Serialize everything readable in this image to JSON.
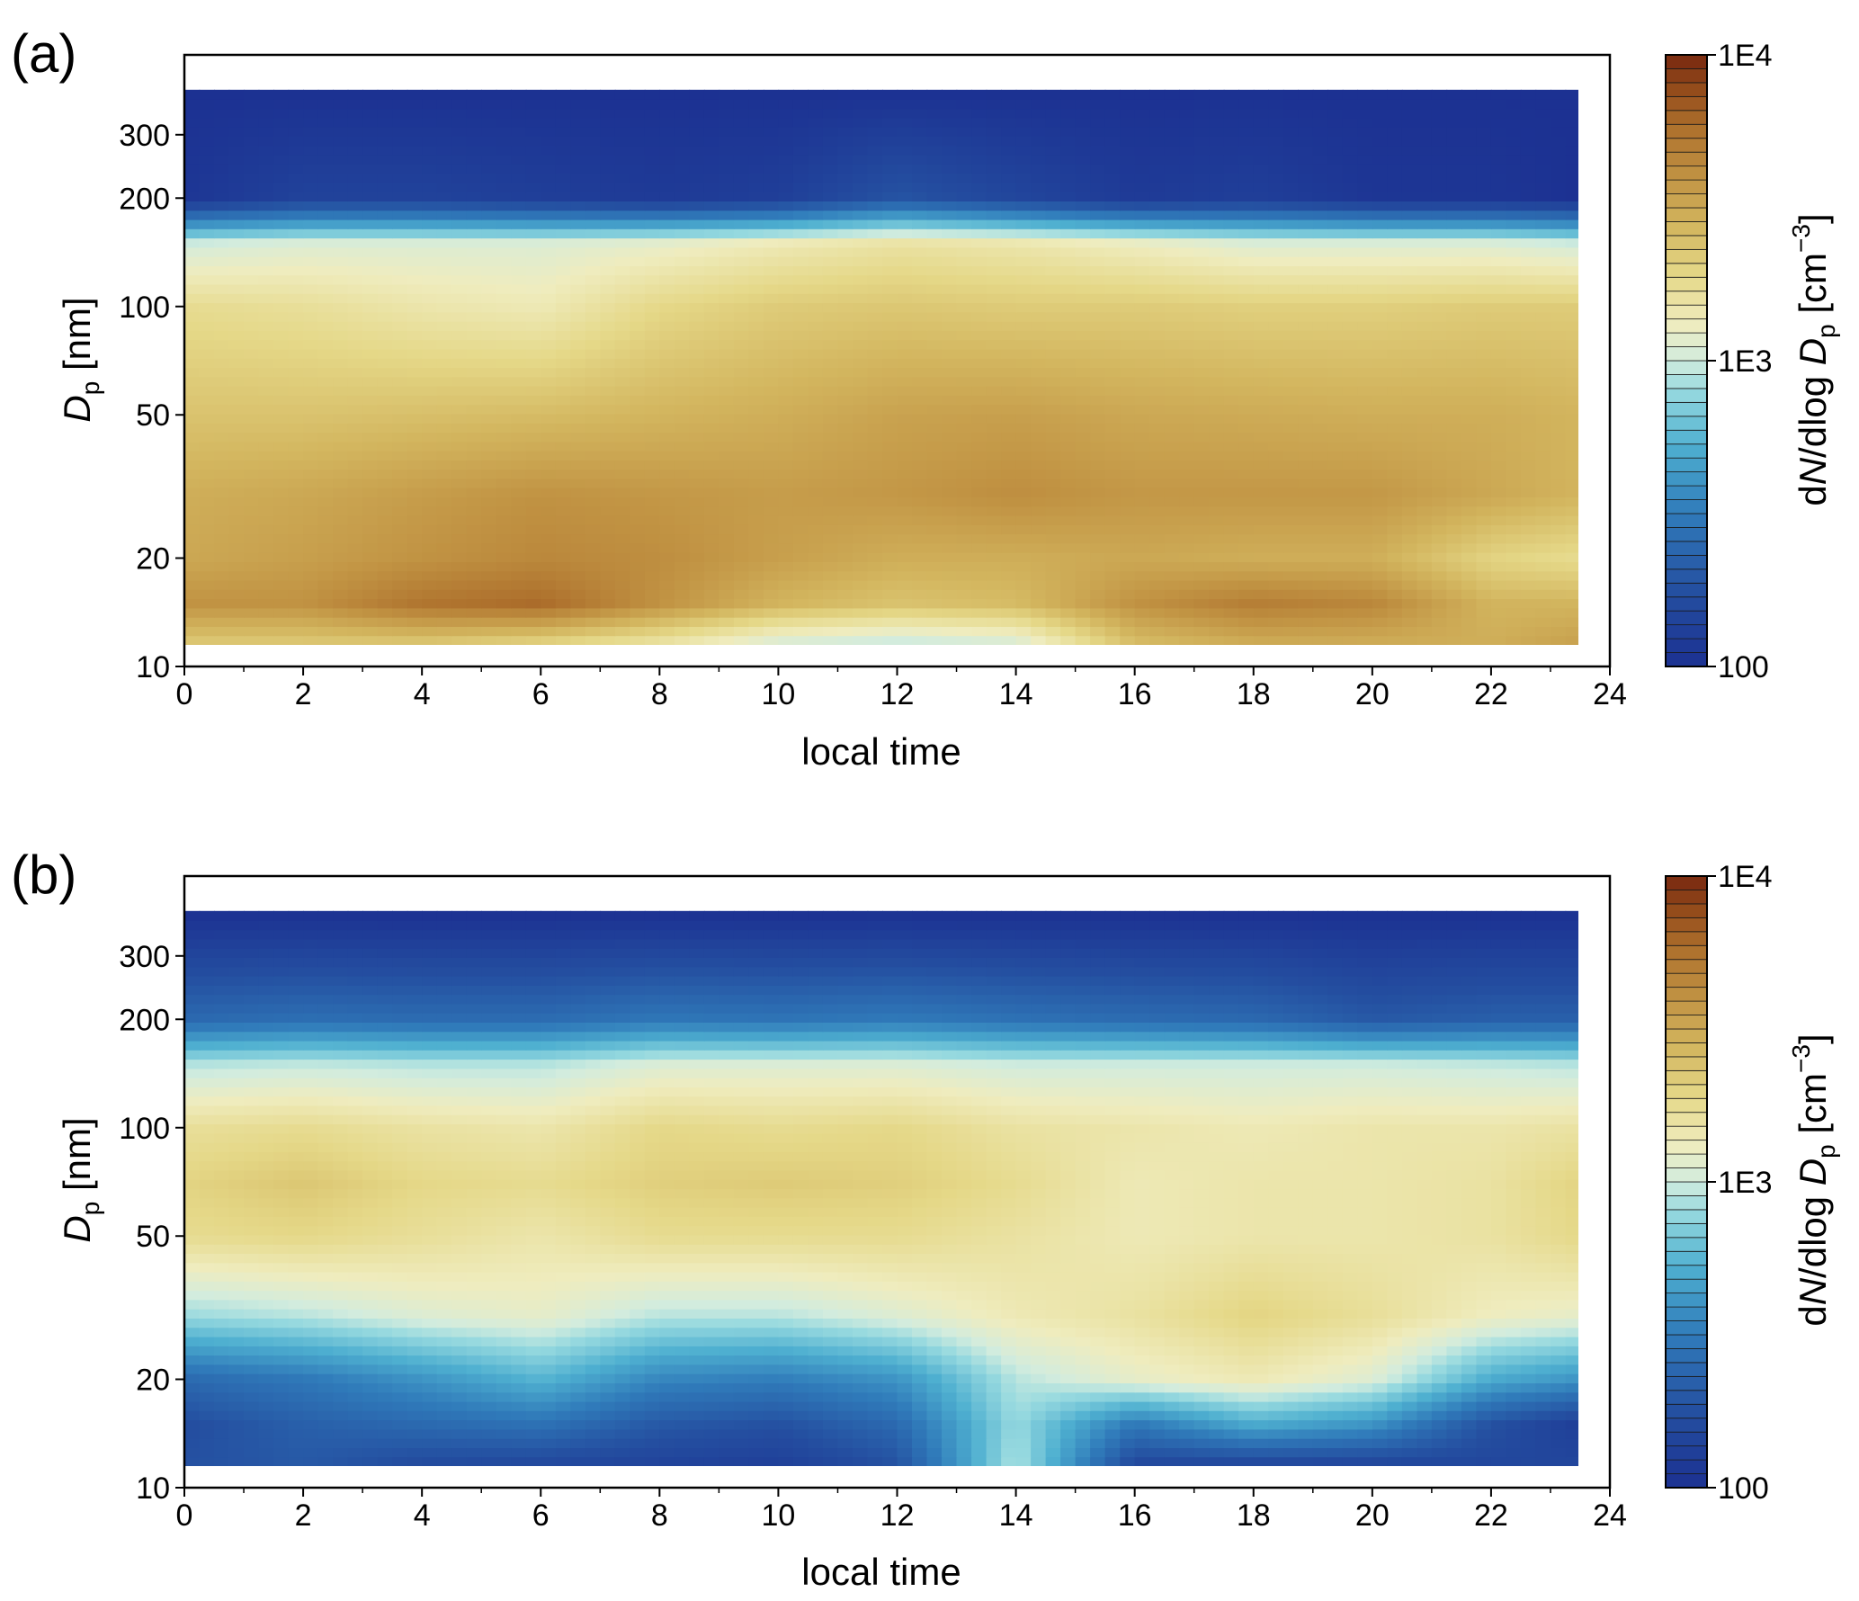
{
  "chart_data": [
    {
      "type": "heatmap",
      "panel_label": "(a)",
      "xlabel": "local time",
      "ylabel": "D",
      "ylabel_sub": "p",
      "ylabel_unit": " [nm]",
      "x_ticks": [
        "0",
        "2",
        "4",
        "6",
        "8",
        "10",
        "12",
        "14",
        "16",
        "18",
        "20",
        "22",
        "24"
      ],
      "xlim": [
        0,
        24
      ],
      "y_ticks": [
        {
          "value": 10,
          "label": "10"
        },
        {
          "value": 20,
          "label": "20"
        },
        {
          "value": 50,
          "label": "50"
        },
        {
          "value": 100,
          "label": "100"
        },
        {
          "value": 200,
          "label": "200"
        },
        {
          "value": 300,
          "label": "300"
        }
      ],
      "ylim": [
        10,
        500
      ],
      "y_scale": "log",
      "data_extent": {
        "x": [
          0,
          23.5
        ],
        "y": [
          11.5,
          400
        ]
      },
      "colorbar": {
        "label_pre": "d",
        "label_N": "N",
        "label_mid": "/dlog ",
        "label_D": "D",
        "label_sub": "p",
        "label_unit": " [cm",
        "label_sup": "−3",
        "label_close": "]",
        "ticks": [
          {
            "value": 100,
            "label": "100"
          },
          {
            "value": 1000,
            "label": "1E3"
          },
          {
            "value": 10000,
            "label": "1E4"
          }
        ],
        "scale": "log",
        "range": [
          100,
          10000
        ]
      },
      "x": [
        0,
        2,
        4,
        6,
        8,
        10,
        12,
        14,
        16,
        18,
        20,
        22,
        23.5
      ],
      "y": [
        11.5,
        15,
        20,
        30,
        50,
        100,
        150,
        200,
        400
      ],
      "z": [
        [
          2200,
          2200,
          2200,
          1900,
          1500,
          1000,
          900,
          1000,
          2500,
          3000,
          3000,
          3000,
          3500
        ],
        [
          4000,
          4000,
          5500,
          6000,
          4000,
          2800,
          2400,
          2600,
          4000,
          5000,
          4500,
          2800,
          2800
        ],
        [
          3200,
          3500,
          4000,
          4500,
          4200,
          3500,
          3000,
          3000,
          3200,
          3000,
          3000,
          2000,
          1800
        ],
        [
          3000,
          3200,
          3600,
          4000,
          3800,
          3600,
          3800,
          4200,
          3800,
          3800,
          3800,
          3200,
          2800
        ],
        [
          2400,
          2400,
          2500,
          2600,
          2800,
          3000,
          3400,
          3500,
          3200,
          3100,
          3000,
          3000,
          2800
        ],
        [
          1800,
          1700,
          1500,
          1400,
          1900,
          2200,
          2300,
          2200,
          2200,
          2100,
          2100,
          2200,
          2200
        ],
        [
          1000,
          1100,
          1100,
          1100,
          1200,
          1400,
          1600,
          1500,
          1300,
          1100,
          1100,
          1100,
          1000
        ],
        [
          110,
          140,
          140,
          130,
          120,
          130,
          190,
          150,
          120,
          130,
          110,
          110,
          100
        ],
        [
          100,
          100,
          100,
          100,
          100,
          100,
          100,
          100,
          100,
          100,
          100,
          100,
          100
        ]
      ]
    },
    {
      "type": "heatmap",
      "panel_label": "(b)",
      "xlabel": "local time",
      "ylabel": "D",
      "ylabel_sub": "p",
      "ylabel_unit": " [nm]",
      "x_ticks": [
        "0",
        "2",
        "4",
        "6",
        "8",
        "10",
        "12",
        "14",
        "16",
        "18",
        "20",
        "22",
        "24"
      ],
      "xlim": [
        0,
        24
      ],
      "y_ticks": [
        {
          "value": 10,
          "label": "10"
        },
        {
          "value": 20,
          "label": "20"
        },
        {
          "value": 50,
          "label": "50"
        },
        {
          "value": 100,
          "label": "100"
        },
        {
          "value": 200,
          "label": "200"
        },
        {
          "value": 300,
          "label": "300"
        }
      ],
      "ylim": [
        10,
        500
      ],
      "y_scale": "log",
      "data_extent": {
        "x": [
          0,
          23.5
        ],
        "y": [
          11.5,
          400
        ]
      },
      "colorbar": {
        "label_pre": "d",
        "label_N": "N",
        "label_mid": "/dlog ",
        "label_D": "D",
        "label_sub": "p",
        "label_unit": " [cm",
        "label_sup": "−3",
        "label_close": "]",
        "ticks": [
          {
            "value": 100,
            "label": "100"
          },
          {
            "value": 1000,
            "label": "1E3"
          },
          {
            "value": 10000,
            "label": "1E4"
          }
        ],
        "scale": "log",
        "range": [
          100,
          10000
        ]
      },
      "x": [
        0,
        2,
        4,
        6,
        8,
        10,
        12,
        14,
        16,
        18,
        20,
        22,
        23.5
      ],
      "y": [
        11.5,
        15,
        20,
        30,
        50,
        70,
        100,
        150,
        200,
        400
      ],
      "z": [
        [
          180,
          200,
          160,
          150,
          140,
          130,
          180,
          900,
          150,
          140,
          140,
          150,
          150
        ],
        [
          170,
          220,
          250,
          280,
          200,
          180,
          250,
          800,
          300,
          500,
          400,
          180,
          130
        ],
        [
          250,
          300,
          400,
          550,
          350,
          320,
          400,
          900,
          1200,
          1400,
          1100,
          500,
          400
        ],
        [
          800,
          900,
          1100,
          1200,
          900,
          900,
          1100,
          1400,
          1600,
          2000,
          1700,
          1300,
          1200
        ],
        [
          1800,
          1900,
          1700,
          1500,
          1800,
          1800,
          1800,
          1600,
          1400,
          1500,
          1500,
          1600,
          1900
        ],
        [
          2000,
          2300,
          1900,
          1800,
          2100,
          2200,
          2100,
          1800,
          1400,
          1500,
          1500,
          1600,
          2000
        ],
        [
          1700,
          1800,
          1600,
          1500,
          1900,
          1800,
          1900,
          1600,
          1500,
          1400,
          1500,
          1500,
          1600
        ],
        [
          900,
          950,
          900,
          900,
          1100,
          1100,
          1100,
          1000,
          1000,
          1000,
          1000,
          950,
          900
        ],
        [
          250,
          270,
          260,
          260,
          300,
          290,
          310,
          280,
          260,
          250,
          200,
          220,
          220
        ],
        [
          100,
          100,
          100,
          100,
          100,
          100,
          100,
          100,
          100,
          100,
          100,
          100,
          100
        ]
      ]
    }
  ]
}
